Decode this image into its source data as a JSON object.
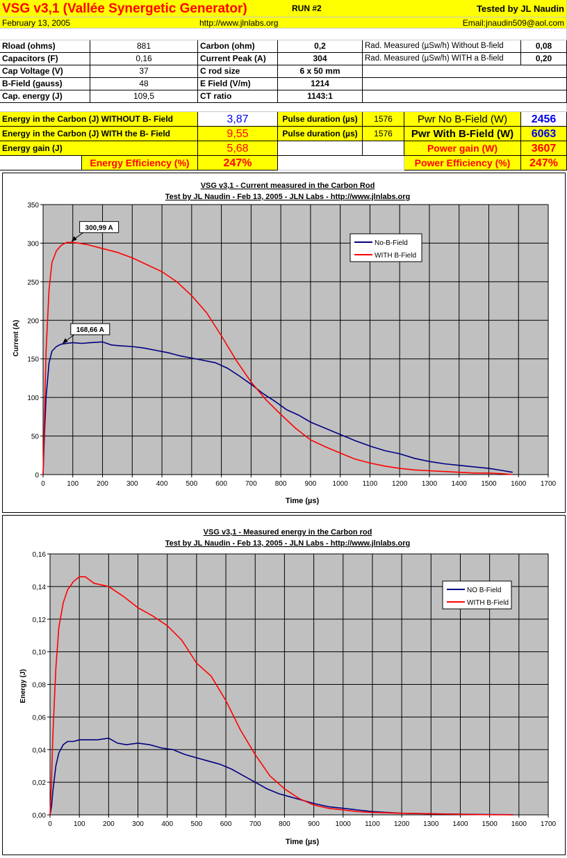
{
  "header": {
    "title": "VSG v3,1 (Vallée Synergetic Generator)",
    "run": "RUN #2",
    "tested_by": "Tested by JL Naudin",
    "date": "February 13, 2005",
    "url": "http://www.jlnlabs.org",
    "email": "Email:jnaudin509@aol.com"
  },
  "params": {
    "rows": [
      {
        "l1": "Rload (ohms)",
        "v1": "881",
        "l2": "Carbon  (ohm)",
        "v2": "0,2",
        "l3": "Rad. Measured (µSw/h) Without B-field",
        "v3": "0,08"
      },
      {
        "l1": "Capacitors (F)",
        "v1": "0,16",
        "l2": "Current Peak (A)",
        "v2": "304",
        "l3": "Rad. Measured (µSw/h) WITH a B-field",
        "v3": "0,20"
      },
      {
        "l1": "Cap Voltage (V)",
        "v1": "37",
        "l2": "C rod size",
        "v2": "6 x 50 mm",
        "l3": "",
        "v3": ""
      },
      {
        "l1": "B-Field (gauss)",
        "v1": "48",
        "l2": "E Field (V/m)",
        "v2": "1214",
        "l3": "",
        "v3": ""
      },
      {
        "l1": "Cap. energy (J)",
        "v1": "109,5",
        "l2": "CT ratio",
        "v2": "1143:1",
        "l3": "",
        "v3": ""
      }
    ]
  },
  "results": {
    "energy_without_label": "Energy in the Carbon (J) WITHOUT B- Field",
    "energy_without": "3,87",
    "energy_with_label": "Energy in the Carbon (J) WITH the B- Field",
    "energy_with": "9,55",
    "energy_gain_label": "Energy gain (J)",
    "energy_gain": "5,68",
    "efficiency_label": "Energy Efficiency (%)",
    "efficiency": "247%",
    "pulse_label_1": "Pulse duration (µs)",
    "pulse_1": "1576",
    "pulse_label_2": "Pulse duration (µs)",
    "pulse_2": "1576",
    "pwr_no_label": "Pwr No B-Field (W)",
    "pwr_no": "2456",
    "pwr_with_label": "Pwr With B-Field (W)",
    "pwr_with": "6063",
    "power_gain_label": "Power gain (W)",
    "power_gain": "3607",
    "power_eff_label": "Power Efficiency (%)",
    "power_eff": "247%"
  },
  "colors": {
    "yellow": "#ffff00",
    "plot_bg": "#c0c0c0",
    "series_no": "#000080",
    "series_with": "#ff0000",
    "value_blue": "#0000ee",
    "value_red": "#ff0000"
  },
  "chart_data": [
    {
      "type": "line",
      "title": "VSG v3,1 - Current measured in the Carbon Rod",
      "subtitle": "Test by JL Naudin - Feb 13, 2005 - JLN Labs - http://www.jlnlabs.org",
      "xlabel": "Time (µs)",
      "ylabel": "Current (A)",
      "xlim": [
        0,
        1700
      ],
      "ylim": [
        0,
        350
      ],
      "xticks": [
        0,
        100,
        200,
        300,
        400,
        500,
        600,
        700,
        800,
        900,
        1000,
        1100,
        1200,
        1300,
        1400,
        1500,
        1600,
        1700
      ],
      "yticks": [
        0,
        50,
        100,
        150,
        200,
        250,
        300,
        350
      ],
      "grid": true,
      "legend_position": "top-right",
      "annotations": [
        {
          "text": "300,99 A",
          "x": 95,
          "y": 301
        },
        {
          "text": "168,66 A",
          "x": 65,
          "y": 168.66
        }
      ],
      "series": [
        {
          "name": "No-B-Field",
          "color": "#000080",
          "x": [
            0,
            5,
            10,
            20,
            30,
            45,
            60,
            80,
            100,
            130,
            160,
            200,
            230,
            260,
            300,
            340,
            380,
            420,
            460,
            500,
            540,
            580,
            620,
            660,
            700,
            740,
            780,
            820,
            860,
            900,
            950,
            1000,
            1050,
            1100,
            1150,
            1200,
            1250,
            1300,
            1350,
            1400,
            1450,
            1500,
            1550,
            1580
          ],
          "values": [
            0,
            55,
            100,
            145,
            160,
            166,
            169,
            170,
            171,
            170,
            171,
            172,
            168,
            167,
            166,
            164,
            161,
            158,
            154,
            151,
            148,
            145,
            138,
            128,
            117,
            105,
            95,
            84,
            77,
            68,
            60,
            52,
            44,
            37,
            31,
            27,
            21,
            17,
            14,
            12,
            10,
            8,
            5,
            3
          ]
        },
        {
          "name": "WITH B-Field",
          "color": "#ff0000",
          "x": [
            0,
            5,
            10,
            20,
            30,
            45,
            60,
            80,
            95,
            120,
            150,
            200,
            250,
            300,
            350,
            400,
            450,
            500,
            550,
            600,
            650,
            700,
            750,
            800,
            850,
            900,
            950,
            1000,
            1050,
            1100,
            1150,
            1200,
            1250,
            1300,
            1350,
            1400,
            1450,
            1500,
            1550,
            1580
          ],
          "values": [
            0,
            80,
            160,
            240,
            275,
            290,
            297,
            301,
            301,
            300,
            298,
            293,
            288,
            281,
            272,
            263,
            250,
            232,
            210,
            180,
            148,
            120,
            97,
            78,
            60,
            45,
            36,
            28,
            20,
            15,
            11,
            8,
            6,
            5,
            4,
            3,
            2,
            2,
            1,
            0
          ]
        }
      ]
    },
    {
      "type": "line",
      "title": "VSG v3,1 - Measured energy in the Carbon rod",
      "subtitle": "Test by JL Naudin - Feb 13, 2005 - JLN Labs - http://www.jlnlabs.org",
      "xlabel": "Time (µs)",
      "ylabel": "Energy (J)",
      "xlim": [
        0,
        1700
      ],
      "ylim": [
        0,
        0.16
      ],
      "xticks": [
        0,
        100,
        200,
        300,
        400,
        500,
        600,
        700,
        800,
        900,
        1000,
        1100,
        1200,
        1300,
        1400,
        1500,
        1600,
        1700
      ],
      "yticks": [
        0,
        0.02,
        0.04,
        0.06,
        0.08,
        0.1,
        0.12,
        0.14,
        0.16
      ],
      "ytick_labels": [
        "0,00",
        "0,02",
        "0,04",
        "0,06",
        "0,08",
        "0,10",
        "0,12",
        "0,14",
        "0,16"
      ],
      "grid": true,
      "legend_position": "top-right",
      "series": [
        {
          "name": "NO B-Field",
          "color": "#000080",
          "x": [
            0,
            5,
            10,
            20,
            30,
            45,
            60,
            80,
            100,
            130,
            160,
            200,
            230,
            260,
            300,
            340,
            380,
            420,
            460,
            500,
            540,
            580,
            620,
            660,
            700,
            740,
            780,
            820,
            860,
            900,
            950,
            1000,
            1050,
            1100,
            1150,
            1200,
            1300,
            1400,
            1500,
            1580
          ],
          "values": [
            0,
            0.005,
            0.015,
            0.03,
            0.038,
            0.043,
            0.045,
            0.045,
            0.046,
            0.046,
            0.046,
            0.047,
            0.044,
            0.043,
            0.044,
            0.043,
            0.041,
            0.04,
            0.037,
            0.035,
            0.033,
            0.031,
            0.028,
            0.024,
            0.02,
            0.016,
            0.013,
            0.011,
            0.009,
            0.007,
            0.005,
            0.004,
            0.003,
            0.002,
            0.0015,
            0.001,
            0.0007,
            0.0004,
            0.0002,
            0.0001
          ]
        },
        {
          "name": "WITH B-Field",
          "color": "#ff0000",
          "x": [
            0,
            5,
            10,
            20,
            30,
            45,
            60,
            80,
            100,
            120,
            150,
            200,
            250,
            300,
            350,
            400,
            450,
            500,
            550,
            600,
            650,
            700,
            750,
            800,
            850,
            900,
            950,
            1000,
            1050,
            1100,
            1200,
            1300,
            1400,
            1500,
            1580
          ],
          "values": [
            0,
            0.02,
            0.05,
            0.09,
            0.115,
            0.13,
            0.138,
            0.143,
            0.146,
            0.146,
            0.142,
            0.14,
            0.134,
            0.127,
            0.122,
            0.116,
            0.107,
            0.093,
            0.085,
            0.07,
            0.052,
            0.037,
            0.024,
            0.016,
            0.01,
            0.006,
            0.004,
            0.003,
            0.002,
            0.0015,
            0.001,
            0.0006,
            0.0003,
            0.0001,
            0
          ]
        }
      ]
    }
  ]
}
